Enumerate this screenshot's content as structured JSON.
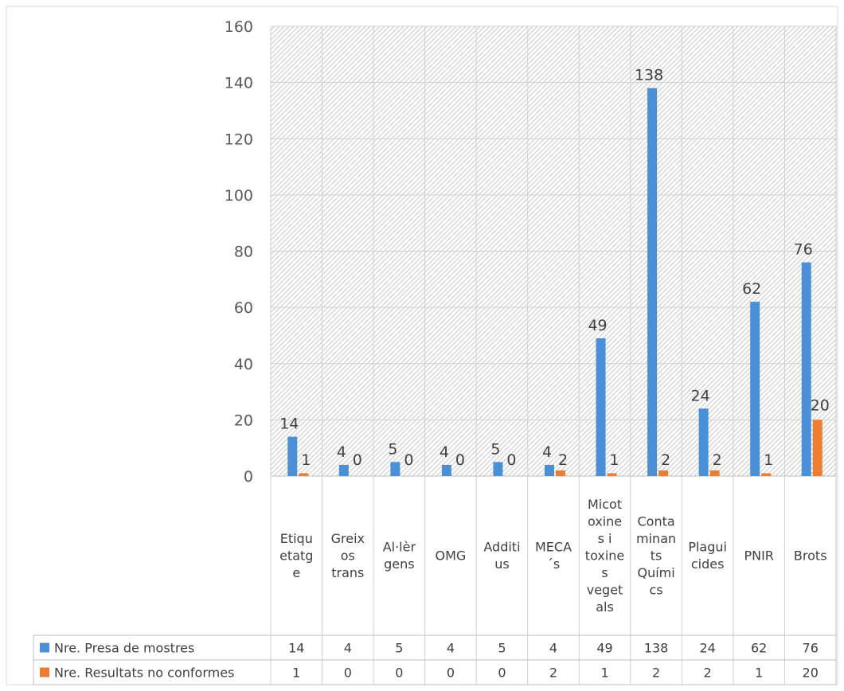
{
  "chart_data": {
    "type": "bar",
    "categories": [
      "Etiquetatge",
      "Greixos trans",
      "Al·lèrgens",
      "OMG",
      "Additius",
      "MECA´s",
      "Micotoxines i toxines vegetals",
      "Contaminants Químics",
      "Plaguicides",
      "PNIR",
      "Brots"
    ],
    "category_label_lines": [
      [
        "Etiqu",
        "etatg",
        "e"
      ],
      [
        "Greix",
        "os",
        "trans"
      ],
      [
        "Al·lèr",
        "gens"
      ],
      [
        "OMG"
      ],
      [
        "Additi",
        "us"
      ],
      [
        "MECA",
        "´s"
      ],
      [
        "Micot",
        "oxine",
        "s i",
        "toxine",
        "s",
        "veget",
        "als"
      ],
      [
        "Conta",
        "minan",
        "ts",
        "Quími",
        "cs"
      ],
      [
        "Plagui",
        "cides"
      ],
      [
        "PNIR"
      ],
      [
        "Brots"
      ]
    ],
    "series": [
      {
        "name": "Nre. Presa de mostres",
        "color": "#4a90d9",
        "values": [
          14,
          4,
          5,
          4,
          5,
          4,
          49,
          138,
          24,
          62,
          76
        ]
      },
      {
        "name": "Nre. Resultats no conformes",
        "color": "#ed7d31",
        "values": [
          1,
          0,
          0,
          0,
          0,
          2,
          1,
          2,
          2,
          1,
          20
        ]
      }
    ],
    "ylim": [
      0,
      160
    ],
    "yticks": [
      0,
      20,
      40,
      60,
      80,
      100,
      120,
      140,
      160
    ],
    "grid": true,
    "data_labels": true,
    "legend": "data-table-below"
  }
}
